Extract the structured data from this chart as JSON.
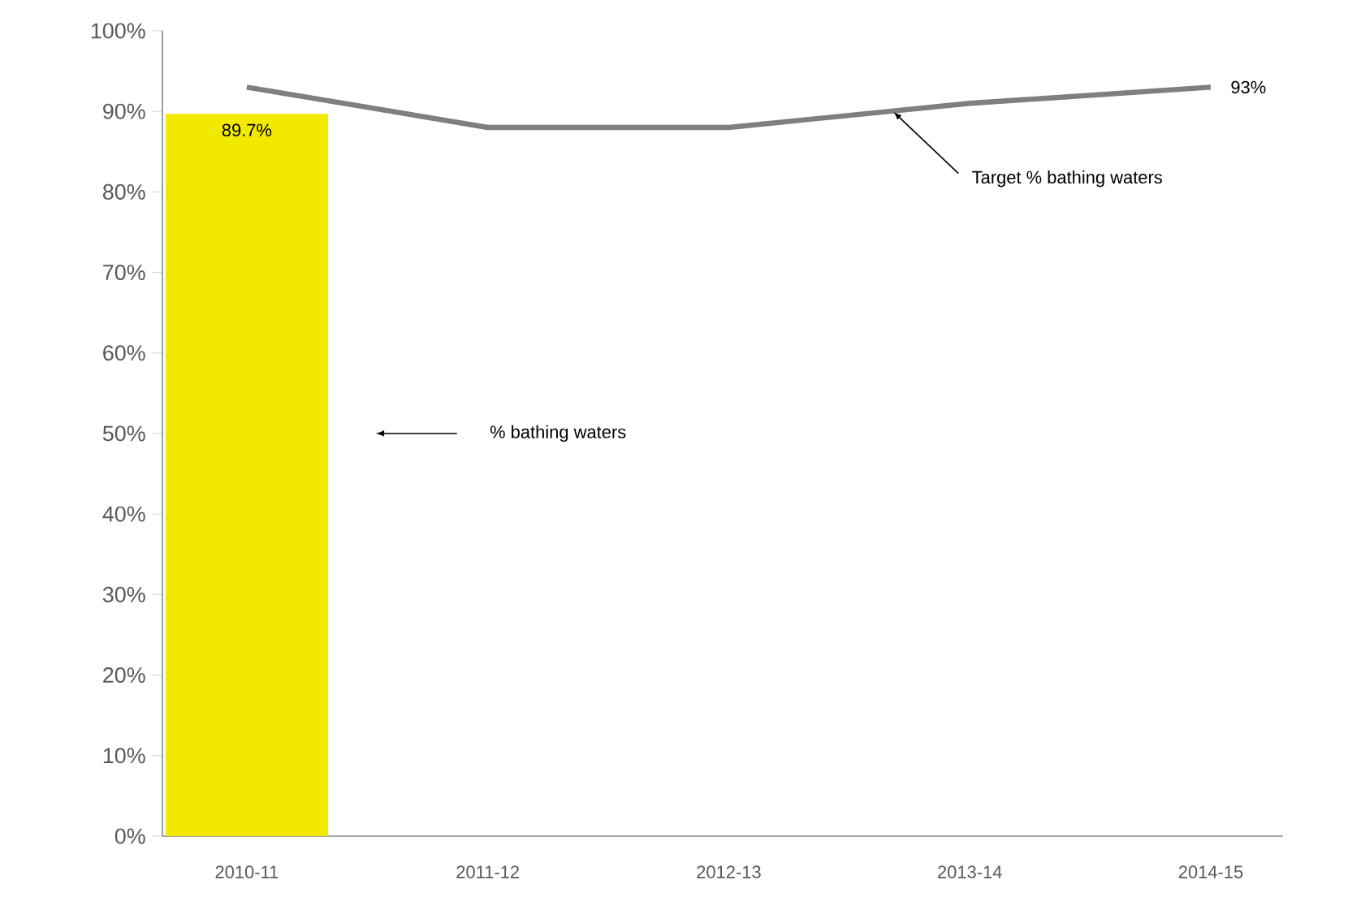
{
  "chart_data": {
    "type": "bar",
    "categories": [
      "2010-11",
      "2011-12",
      "2012-13",
      "2013-14",
      "2014-15"
    ],
    "series": [
      {
        "color": "#f2e900",
        "values": [
          89.7,
          null,
          null,
          null,
          null
        ],
        "value_labels": [
          "89.7%",
          null,
          null,
          null,
          null
        ]
      },
      {
        "type": "line",
        "color": "#7f7f7f",
        "values": [
          93,
          88,
          88,
          91,
          93
        ],
        "value_labels": [
          null,
          null,
          null,
          null,
          "93%"
        ]
      }
    ],
    "annotations": [
      "% bathing waters",
      "Target % bathing waters"
    ],
    "ylim": [
      0,
      100
    ],
    "yticks": [
      {
        "value": 0,
        "label": "0%"
      },
      {
        "value": 10,
        "label": "10%"
      },
      {
        "value": 20,
        "label": "20%"
      },
      {
        "value": 30,
        "label": "30%"
      },
      {
        "value": 40,
        "label": "40%"
      },
      {
        "value": 50,
        "label": "50%"
      },
      {
        "value": 60,
        "label": "60%"
      },
      {
        "value": 70,
        "label": "70%"
      },
      {
        "value": 80,
        "label": "80%"
      },
      {
        "value": 90,
        "label": "90%"
      },
      {
        "value": 100,
        "label": "100%"
      }
    ]
  }
}
